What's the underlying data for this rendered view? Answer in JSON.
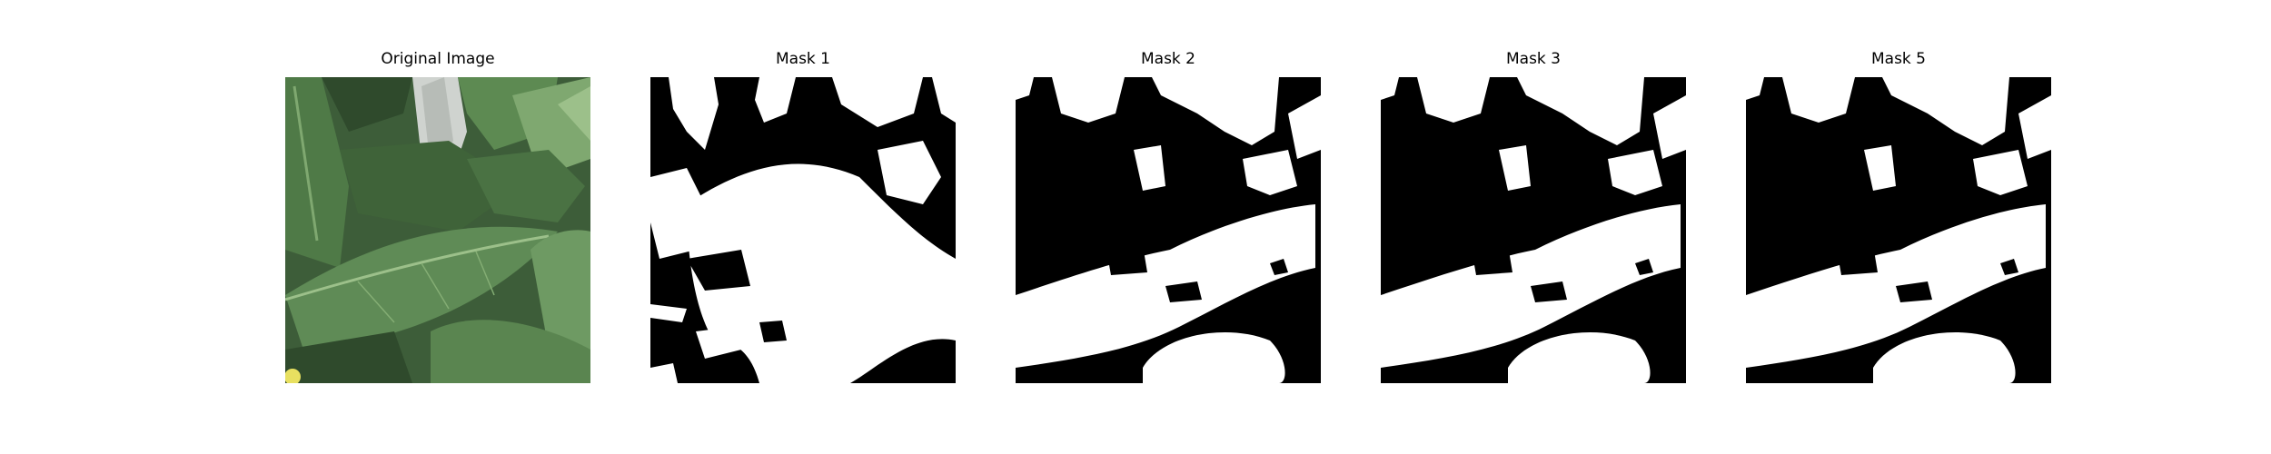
{
  "panels": [
    {
      "title": "Original Image",
      "kind": "photo",
      "subject": "green leaves"
    },
    {
      "title": "Mask 1",
      "kind": "mask",
      "mask_variant": 1
    },
    {
      "title": "Mask 2",
      "kind": "mask",
      "mask_variant": 2
    },
    {
      "title": "Mask 3",
      "kind": "mask",
      "mask_variant": 3
    },
    {
      "title": "Mask 5",
      "kind": "mask",
      "mask_variant": 5
    }
  ],
  "colors": {
    "background": "#ffffff",
    "mask_foreground": "#ffffff",
    "mask_background": "#000000",
    "leaf_dark": "#2f4a2c",
    "leaf_mid": "#4f7a47",
    "leaf_light": "#7fa870",
    "leaf_bright": "#9cc08a",
    "sky_gap": "#cfd3cf",
    "flower": "#e8e060"
  }
}
